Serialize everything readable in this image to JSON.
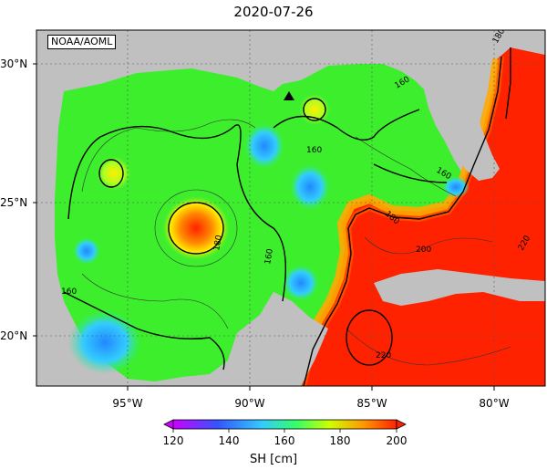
{
  "title": "2020-07-26",
  "credit": "NOAA/AOML",
  "lat_labels": [
    "30°N",
    "25°N",
    "20°N"
  ],
  "lon_labels": [
    "95°W",
    "90°W",
    "85°W",
    "80°W"
  ],
  "contour_labels": [
    "160",
    "160",
    "160",
    "160",
    "180",
    "180",
    "180",
    "200",
    "220",
    "220",
    "160"
  ],
  "colorbar": {
    "ticks": [
      "120",
      "140",
      "160",
      "180",
      "200"
    ],
    "label": "SH [cm]",
    "colors": [
      "#cc00ff",
      "#3355ff",
      "#33ccff",
      "#33ff66",
      "#ccff00",
      "#ff9900",
      "#ff2200"
    ]
  },
  "colors": {
    "land": "#c0c0c0",
    "high": "#ff2200",
    "mid": "#33ff33",
    "low": "#33aaff"
  }
}
